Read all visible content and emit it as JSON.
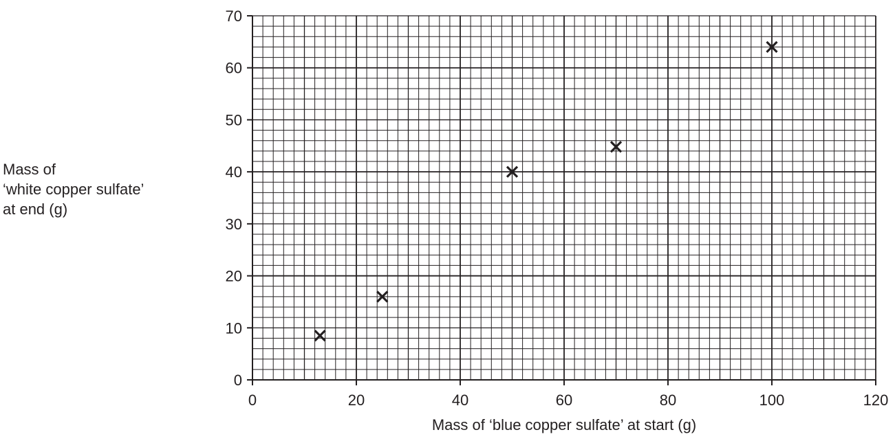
{
  "chart_data": {
    "type": "scatter",
    "title": "",
    "xlabel": "Mass of ‘blue copper sulfate’ at start (g)",
    "ylabel_lines": [
      "Mass of",
      "‘white copper sulfate’",
      "at end (g)"
    ],
    "xlim": [
      0,
      120
    ],
    "ylim": [
      0,
      70
    ],
    "x_ticks": [
      0,
      20,
      40,
      60,
      80,
      100,
      120
    ],
    "y_ticks": [
      0,
      10,
      20,
      30,
      40,
      50,
      60,
      70
    ],
    "x_tick_labels": [
      "0",
      "20",
      "40",
      "60",
      "80",
      "100",
      "120"
    ],
    "y_tick_labels": [
      "0",
      "10",
      "20",
      "30",
      "40",
      "50",
      "60",
      "70"
    ],
    "grid": true,
    "grid_minor_x_step": 2,
    "grid_minor_y_step": 2,
    "grid_mid_x_step": 10,
    "grid_mid_y_step": 10,
    "grid_major_x_step": 20,
    "grid_major_y_step": 20,
    "marker": "x",
    "line_color": "#231f20",
    "points": [
      {
        "x": 13,
        "y": 8.5
      },
      {
        "x": 25,
        "y": 16
      },
      {
        "x": 50,
        "y": 40
      },
      {
        "x": 70,
        "y": 44.8
      },
      {
        "x": 100,
        "y": 64
      }
    ]
  }
}
